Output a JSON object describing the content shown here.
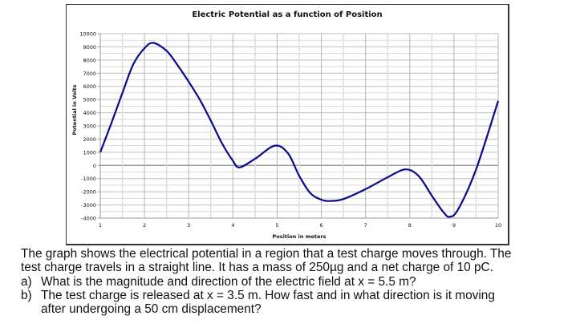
{
  "chart_data": {
    "type": "line",
    "title": "Electric Potential as a function of Position",
    "xlabel": "Position in meters",
    "ylabel": "Potential in Volts",
    "xlim": [
      1,
      10
    ],
    "ylim": [
      -4000,
      10000
    ],
    "x_ticks": [
      1,
      2,
      3,
      4,
      5,
      6,
      7,
      8,
      9,
      10
    ],
    "y_ticks": [
      10000,
      9000,
      8000,
      7000,
      6000,
      5000,
      4000,
      3000,
      2000,
      1000,
      0,
      -1000,
      -2000,
      -3000,
      -4000
    ],
    "grid": true,
    "series": [
      {
        "name": "Potential",
        "color": "#0a0a8a",
        "x": [
          1.0,
          1.25,
          1.5,
          1.75,
          2.0,
          2.2,
          2.5,
          2.75,
          3.0,
          3.25,
          3.5,
          3.75,
          4.0,
          4.15,
          4.5,
          4.95,
          5.25,
          5.5,
          5.75,
          6.0,
          6.2,
          6.5,
          7.0,
          7.5,
          7.9,
          8.2,
          8.5,
          8.75,
          8.9,
          9.1,
          9.5,
          10.0
        ],
        "y": [
          1000,
          3200,
          5500,
          7700,
          8900,
          9300,
          8700,
          7600,
          6350,
          5000,
          3400,
          1700,
          350,
          -150,
          500,
          1500,
          900,
          -800,
          -2100,
          -2600,
          -2700,
          -2550,
          -1800,
          -900,
          -300,
          -800,
          -2300,
          -3500,
          -3900,
          -3300,
          -300,
          4900
        ]
      }
    ]
  },
  "question": {
    "intro_line1": "The graph shows the electrical potential in a region that a test charge moves through. The",
    "intro_line2": "test charge travels in a straight line. It has a mass of 250µg and a net charge of 10 pC.",
    "a_label": "a)",
    "a_text": "What is the magnitude and direction of the electric field at x = 5.5 m?",
    "b_label": "b)",
    "b_text_line1": "The test charge is released at x = 3.5 m. How fast and in what direction is it moving",
    "b_text_line2": "after undergoing a 50 cm displacement?"
  }
}
